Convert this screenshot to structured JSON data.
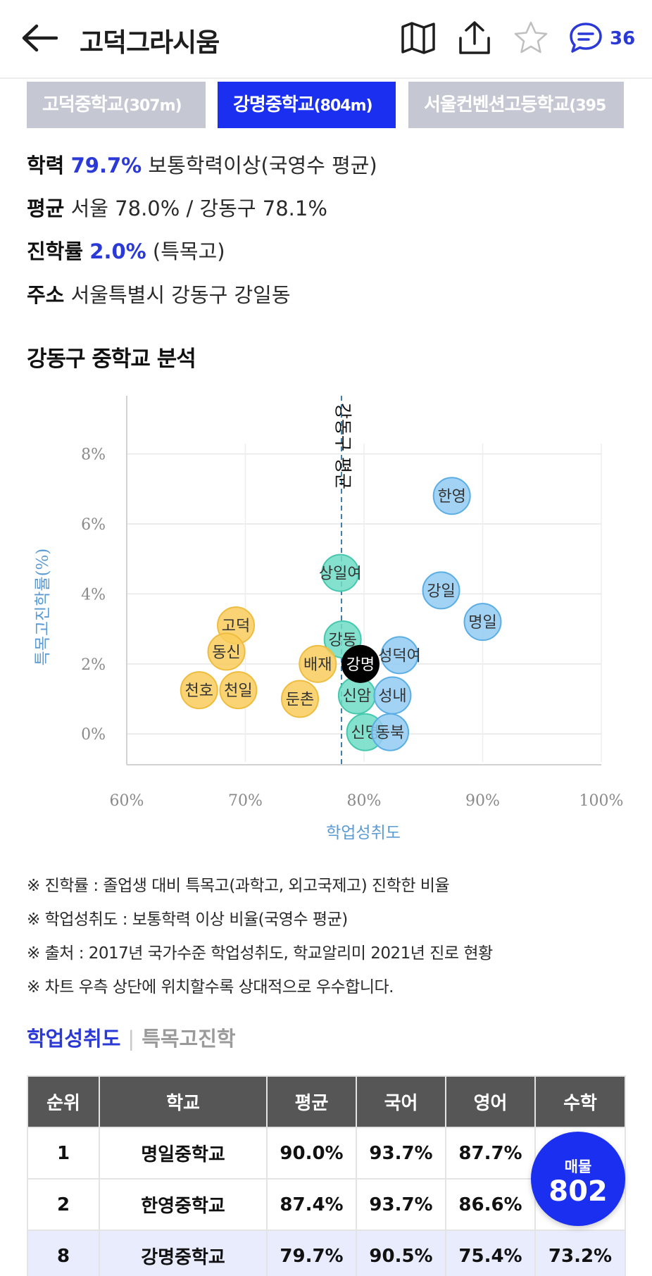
{
  "header": {
    "title": "고덕그라시움",
    "comment_count": "36",
    "icons": [
      "back-arrow-icon",
      "map-icon",
      "share-icon",
      "star-icon",
      "chat-icon"
    ]
  },
  "school_tabs": [
    {
      "name": "고덕중학교",
      "distance": "(307m)",
      "active": false
    },
    {
      "name": "강명중학교",
      "distance": "(804m)",
      "active": true
    },
    {
      "name": "서울컨벤션고등학교",
      "distance": "(395",
      "active": false
    }
  ],
  "info": {
    "achievement_label": "학력",
    "achievement_value": "79.7%",
    "achievement_desc": "보통학력이상(국영수 평균)",
    "average_label": "평균",
    "average_value": "서울 78.0% / 강동구 78.1%",
    "advance_label": "진학률",
    "advance_value": "2.0%",
    "advance_desc": "(특목고)",
    "address_label": "주소",
    "address_value": "서울특별시 강동구 강일동"
  },
  "section_title": "강동구 중학교 분석",
  "chart_data": {
    "type": "scatter",
    "xlabel": "학업성취도",
    "ylabel": "특목고진학률(%)",
    "xlim": [
      60,
      100
    ],
    "ylim": [
      -0.8,
      9.5
    ],
    "xticks": [
      "60%",
      "70%",
      "80%",
      "90%",
      "100%"
    ],
    "yticks": [
      "0%",
      "2%",
      "4%",
      "6%",
      "8%"
    ],
    "grid": true,
    "reference_line": {
      "x": 78.1,
      "label": "강동구 평균"
    },
    "colors": {
      "low": "#f9cd5c",
      "mid": "#6fdcc6",
      "high": "#93cbf2",
      "selected": "#000000"
    },
    "points": [
      {
        "name": "한영",
        "x": 87.4,
        "y": 6.8,
        "group": "high"
      },
      {
        "name": "상일여",
        "x": 78.0,
        "y": 4.6,
        "group": "mid"
      },
      {
        "name": "강일",
        "x": 86.5,
        "y": 4.1,
        "group": "high"
      },
      {
        "name": "명일",
        "x": 90.0,
        "y": 3.2,
        "group": "high"
      },
      {
        "name": "고덕",
        "x": 69.2,
        "y": 3.1,
        "group": "low"
      },
      {
        "name": "동신",
        "x": 68.4,
        "y": 2.35,
        "group": "low"
      },
      {
        "name": "강동",
        "x": 78.2,
        "y": 2.7,
        "group": "mid"
      },
      {
        "name": "배재",
        "x": 76.1,
        "y": 2.0,
        "group": "low"
      },
      {
        "name": "성덕여",
        "x": 83.0,
        "y": 2.25,
        "group": "high"
      },
      {
        "name": "천호",
        "x": 66.1,
        "y": 1.25,
        "group": "low"
      },
      {
        "name": "천일",
        "x": 69.4,
        "y": 1.25,
        "group": "low"
      },
      {
        "name": "둔촌",
        "x": 74.6,
        "y": 1.0,
        "group": "low"
      },
      {
        "name": "신암",
        "x": 79.4,
        "y": 1.1,
        "group": "mid"
      },
      {
        "name": "성내",
        "x": 82.4,
        "y": 1.1,
        "group": "high"
      },
      {
        "name": "신명",
        "x": 80.1,
        "y": 0.05,
        "group": "mid"
      },
      {
        "name": "동북",
        "x": 82.2,
        "y": 0.05,
        "group": "high"
      },
      {
        "name": "강명",
        "x": 79.7,
        "y": 2.0,
        "group": "selected"
      }
    ]
  },
  "notes": [
    "※ 진학률 : 졸업생 대비 특목고(과학고, 외고국제고) 진학한 비율",
    "※ 학업성취도 : 보통학력 이상 비율(국영수 평균)",
    "※ 출처 : 2017년 국가수준 학업성취도, 학교알리미 2021년 진로 현황",
    "※ 차트 우측 상단에 위치할수록 상대적으로 우수합니다."
  ],
  "subtabs": {
    "active": "학업성취도",
    "inactive": "특목고진학"
  },
  "table": {
    "headers": [
      "순위",
      "학교",
      "평균",
      "국어",
      "영어",
      "수학"
    ],
    "rows": [
      {
        "rank": "1",
        "school": "명일중학교",
        "avg": "90.0%",
        "kor": "93.7%",
        "eng": "87.7%",
        "math": ""
      },
      {
        "rank": "2",
        "school": "한영중학교",
        "avg": "87.4%",
        "kor": "93.7%",
        "eng": "86.6%",
        "math": ""
      },
      {
        "rank": "8",
        "school": "강명중학교",
        "avg": "79.7%",
        "kor": "90.5%",
        "eng": "75.4%",
        "math": "73.2%"
      }
    ]
  },
  "badge": {
    "label": "매물",
    "count": "802"
  }
}
